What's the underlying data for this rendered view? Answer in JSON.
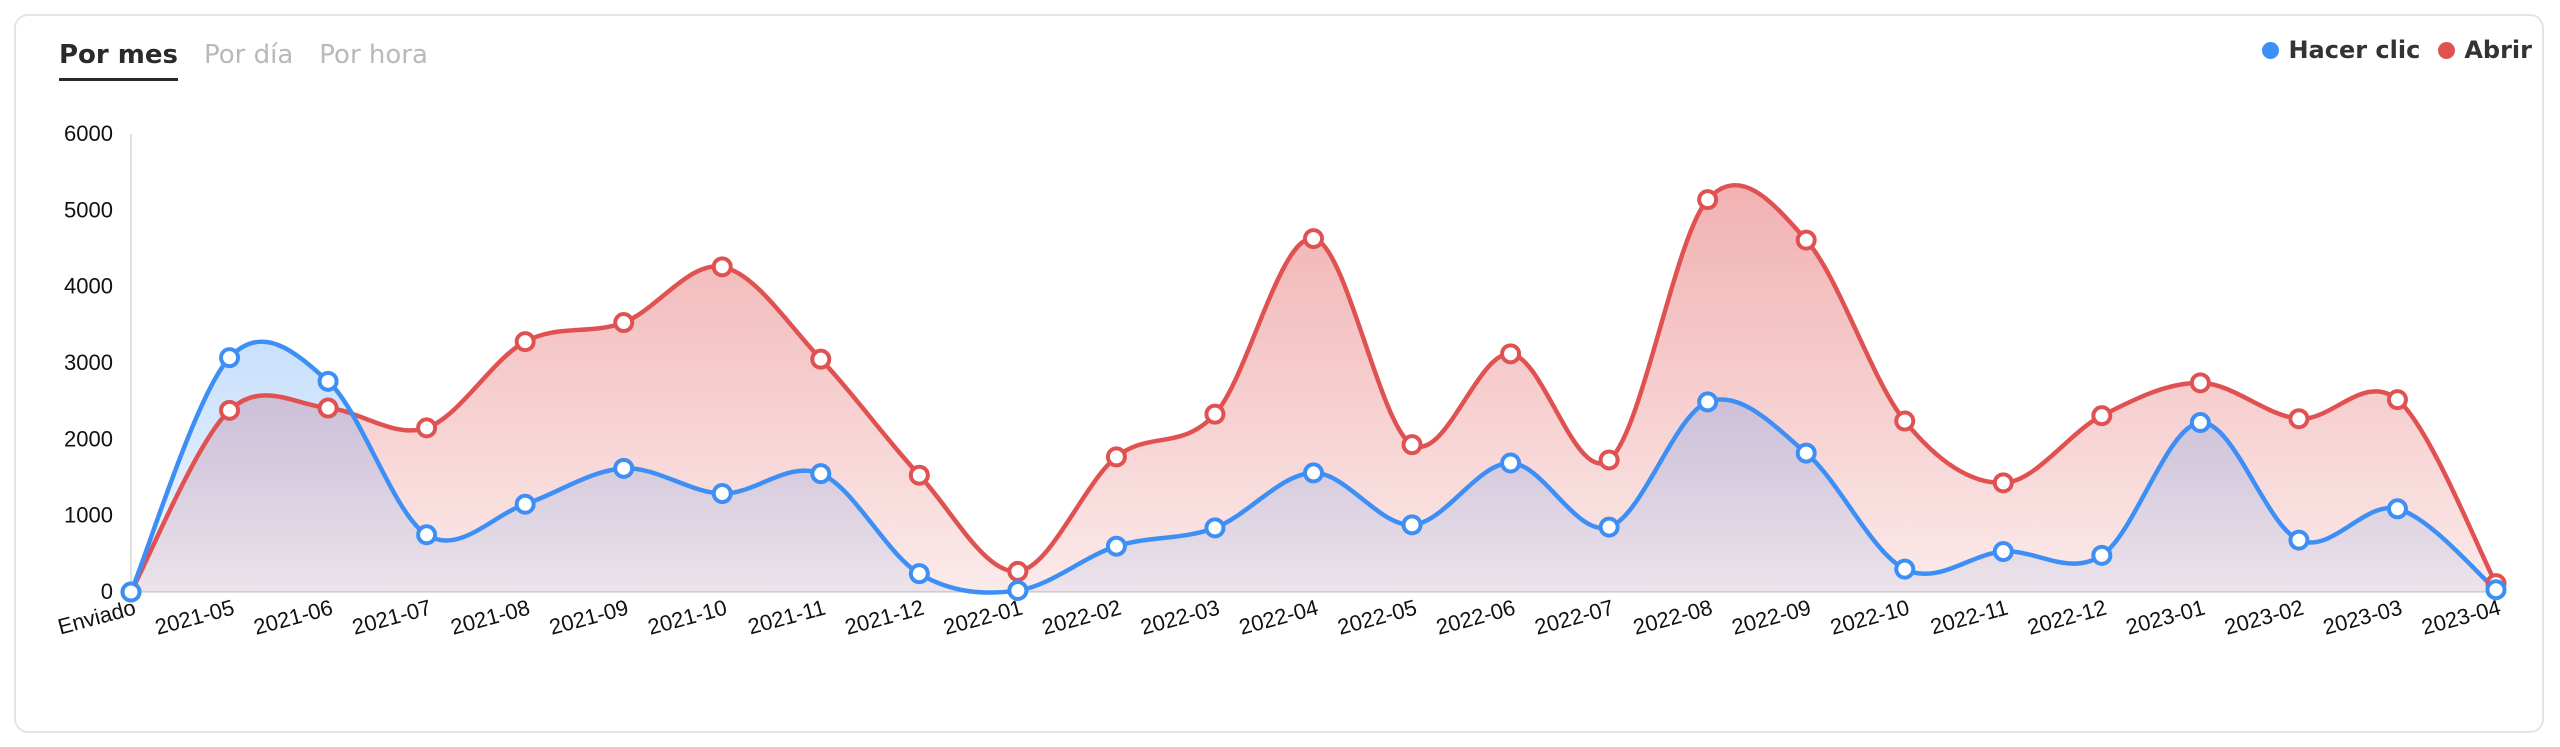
{
  "tabs": [
    {
      "label": "Por mes",
      "active": true
    },
    {
      "label": "Por día",
      "active": false
    },
    {
      "label": "Por hora",
      "active": false
    }
  ],
  "colors": {
    "click": "#3d8ff5",
    "open": "#e05252"
  },
  "chart_data": {
    "type": "area",
    "categories": [
      "Enviado",
      "2021-05",
      "2021-06",
      "2021-07",
      "2021-08",
      "2021-09",
      "2021-10",
      "2021-11",
      "2021-12",
      "2022-01",
      "2022-02",
      "2022-03",
      "2022-04",
      "2022-05",
      "2022-06",
      "2022-07",
      "2022-08",
      "2022-09",
      "2022-10",
      "2022-11",
      "2022-12",
      "2023-01",
      "2023-02",
      "2023-03",
      "2023-04"
    ],
    "series": [
      {
        "name": "Hacer clic",
        "color": "#3d8ff5",
        "values": [
          0,
          3070,
          2760,
          750,
          1150,
          1620,
          1290,
          1550,
          240,
          20,
          600,
          840,
          1560,
          880,
          1690,
          850,
          2490,
          1820,
          300,
          530,
          480,
          2220,
          680,
          1090,
          30
        ]
      },
      {
        "name": "Abrir",
        "color": "#e05252",
        "values": [
          0,
          2380,
          2410,
          2150,
          3280,
          3530,
          4260,
          3050,
          1530,
          270,
          1770,
          2330,
          4630,
          1930,
          3120,
          1730,
          5140,
          4610,
          2240,
          1430,
          2310,
          2740,
          2270,
          2520,
          110
        ]
      }
    ],
    "yticks": [
      0,
      1000,
      2000,
      3000,
      4000,
      5000,
      6000
    ],
    "ylim": [
      0,
      6000
    ],
    "legend_position": "top-right",
    "grid": false
  }
}
